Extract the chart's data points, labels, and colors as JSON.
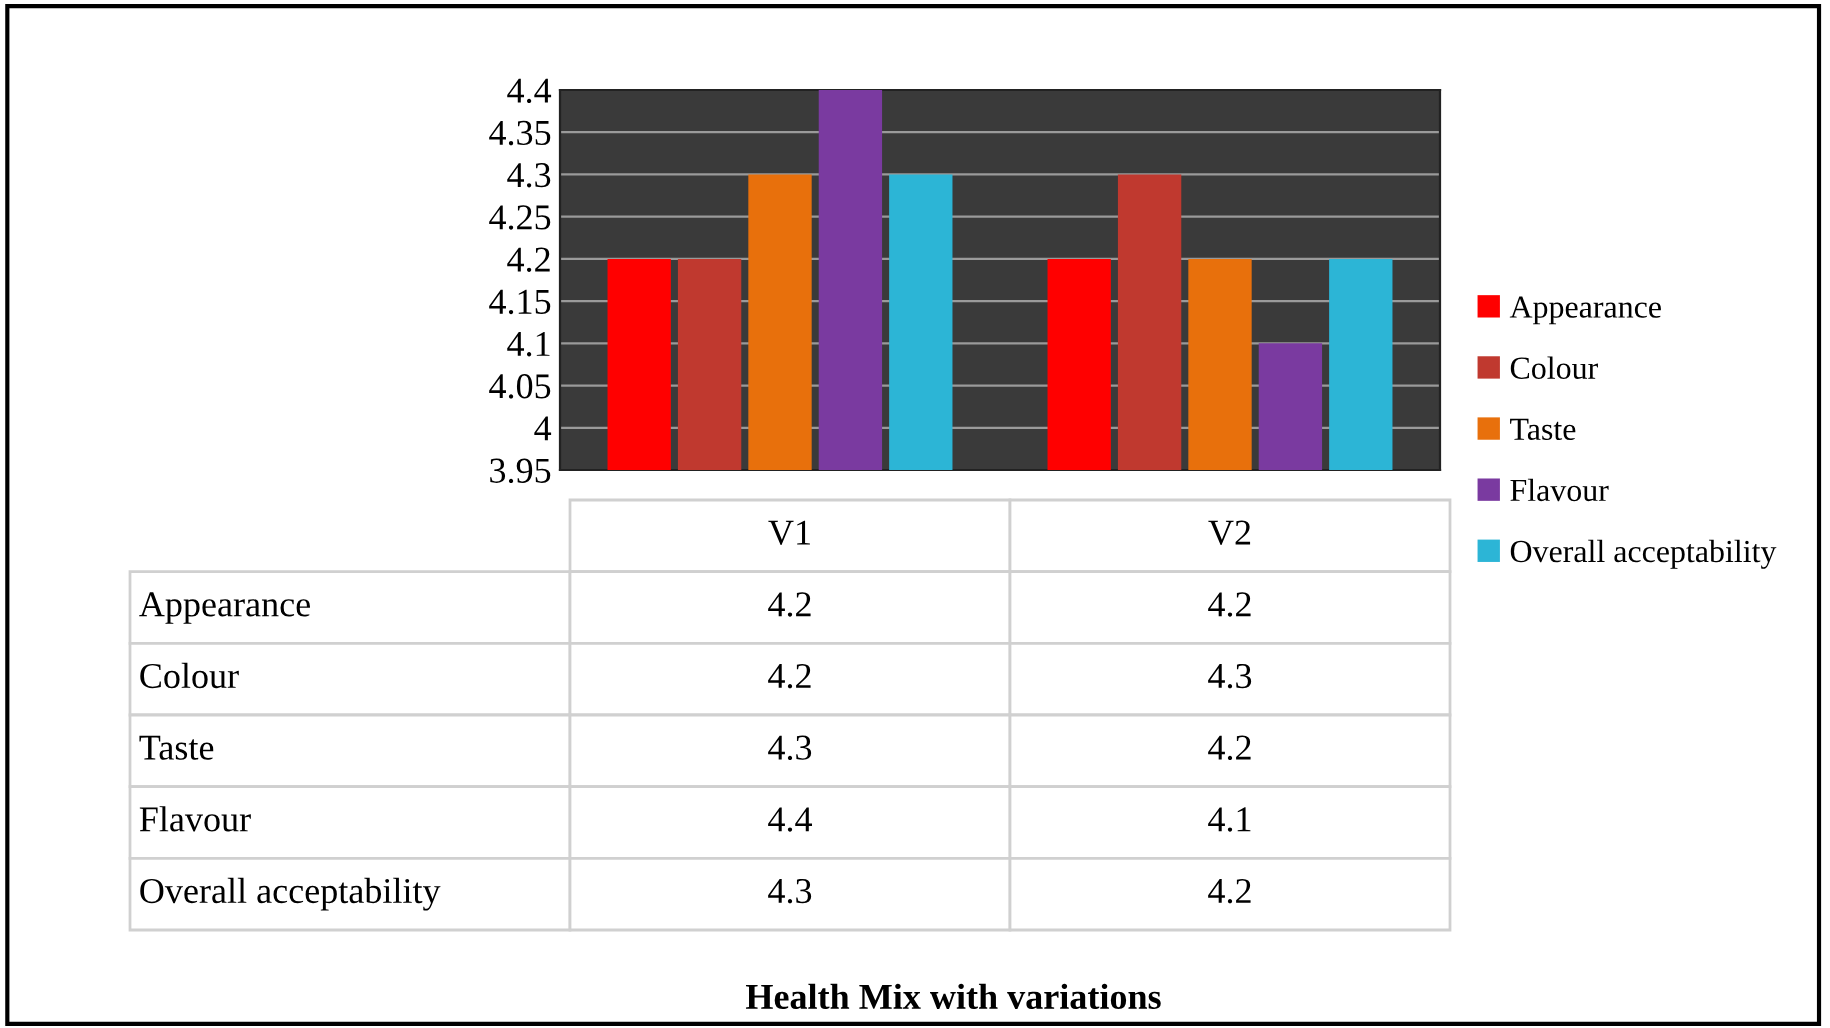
{
  "chart_data": {
    "type": "bar",
    "title": "Health Mix with variations",
    "categories": [
      "V1",
      "V2"
    ],
    "series": [
      {
        "name": "Appearance",
        "color": "#ff0000",
        "values": [
          4.2,
          4.2
        ]
      },
      {
        "name": "Colour",
        "color": "#c0392f",
        "values": [
          4.2,
          4.3
        ]
      },
      {
        "name": "Taste",
        "color": "#e8700c",
        "values": [
          4.3,
          4.2
        ]
      },
      {
        "name": "Flavour",
        "color": "#7a3aa0",
        "values": [
          4.4,
          4.1
        ]
      },
      {
        "name": "Overall acceptability",
        "color": "#2cb5d6",
        "values": [
          4.3,
          4.2
        ]
      }
    ],
    "ylim": [
      3.95,
      4.4
    ],
    "yticks": [
      3.95,
      4,
      4.05,
      4.1,
      4.15,
      4.2,
      4.25,
      4.3,
      4.35,
      4.4
    ],
    "grid": "y",
    "legend": "right",
    "data_labels": true
  }
}
